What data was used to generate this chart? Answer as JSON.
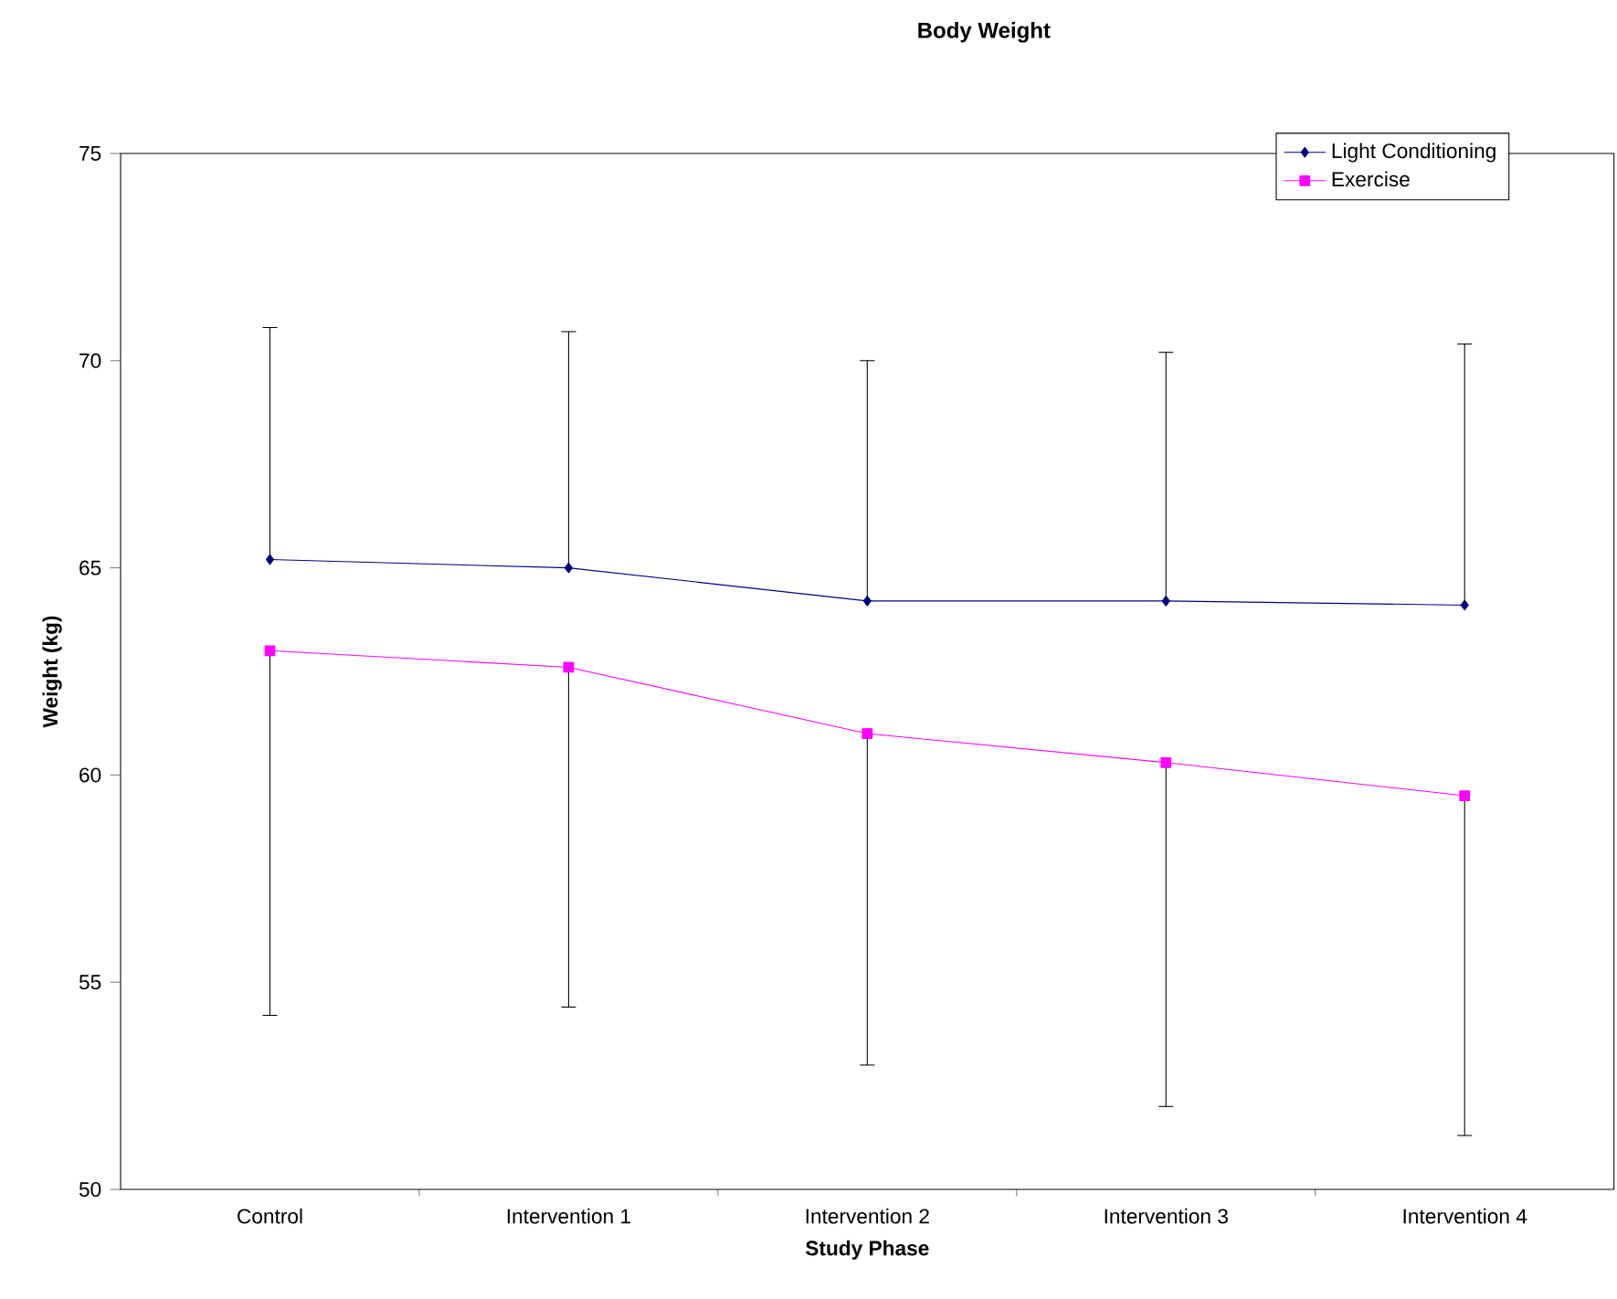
{
  "chart_data": {
    "type": "line",
    "title": "Body Weight",
    "xlabel": "Study Phase",
    "ylabel": "Weight (kg)",
    "categories": [
      "Control",
      "Intervention 1",
      "Intervention 2",
      "Intervention 3",
      "Intervention 4"
    ],
    "series": [
      {
        "name": "Light Conditioning",
        "color": "#000080",
        "marker": "diamond",
        "values": [
          65.2,
          65.0,
          64.2,
          64.2,
          64.1
        ],
        "errors": [
          [
            65.2,
            70.8
          ],
          [
            65.0,
            70.7
          ],
          [
            64.2,
            70.0
          ],
          [
            64.2,
            70.2
          ],
          [
            64.1,
            70.4
          ]
        ]
      },
      {
        "name": "Exercise",
        "color": "#ff00ff",
        "marker": "square",
        "values": [
          63.0,
          62.6,
          61.0,
          60.3,
          59.5
        ],
        "errors": [
          [
            54.2,
            63.0
          ],
          [
            54.4,
            62.6
          ],
          [
            53.0,
            61.0
          ],
          [
            52.0,
            60.3
          ],
          [
            51.3,
            59.5
          ]
        ]
      }
    ],
    "ylim": [
      50,
      75
    ],
    "yticks": [
      50,
      55,
      60,
      65,
      70,
      75
    ],
    "grid": false,
    "legend": "top right",
    "line_style": "solid"
  }
}
